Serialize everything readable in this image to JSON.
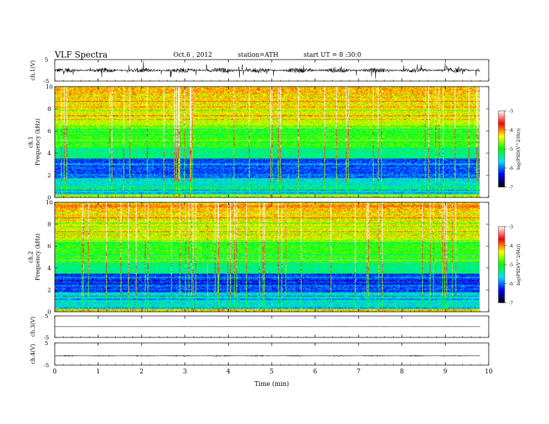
{
  "header": {
    "title": "VLF Spectra",
    "date": "Oct.6 , 2012",
    "station": "station=ATH",
    "start": "start UT = 8 :30:0"
  },
  "colors": {
    "colormap": [
      "#000000",
      "#0000ff",
      "#00e0ff",
      "#00ff00",
      "#ffff00",
      "#ff0000",
      "#ffffff"
    ]
  },
  "chart_data": [
    {
      "type": "line",
      "ylabel": "ch.1(V)",
      "ylim": [
        -5,
        5
      ],
      "yticks": [
        5,
        -5
      ],
      "xlim": [
        0,
        10
      ],
      "trace": {
        "baseline": 0,
        "noise_amplitude": 1.2,
        "spikes": true
      }
    },
    {
      "type": "heatmap",
      "ylabel": "ch.1 Frequency (kHz)",
      "ylim": [
        0,
        10
      ],
      "yticks": [
        0,
        2,
        4,
        6,
        8,
        10
      ],
      "xlim": [
        0,
        9.8
      ],
      "colorbar": {
        "label": "log(PSD(V^2/Hz))",
        "ticks": [
          -3,
          -4,
          -5,
          -6,
          -7
        ],
        "range": [
          -7,
          -3
        ]
      }
    },
    {
      "type": "heatmap",
      "ylabel": "ch.2 Frequency (kHz)",
      "ylim": [
        0,
        10
      ],
      "yticks": [
        0,
        2,
        4,
        6,
        8,
        10
      ],
      "xlim": [
        0,
        9.8
      ],
      "colorbar": {
        "label": "log(PSD(V^2/Hz))",
        "ticks": [
          -3,
          -4,
          -5,
          -6,
          -7
        ],
        "range": [
          -7,
          -3
        ]
      }
    },
    {
      "type": "line",
      "ylabel": "ch.3(V)",
      "ylim": [
        -5,
        5
      ],
      "yticks": [
        5,
        -5
      ],
      "xlim": [
        0,
        10
      ],
      "trace": {
        "baseline": 0,
        "noise_amplitude": 0.05,
        "spikes": false
      }
    },
    {
      "type": "line",
      "ylabel": "ch.4(V)",
      "ylim": [
        -5,
        5
      ],
      "yticks": [
        5,
        -5
      ],
      "xlim": [
        0,
        10
      ],
      "trace": {
        "baseline": -0.8,
        "noise_amplitude": 0.25,
        "spikes": false
      }
    }
  ],
  "x_axis": {
    "label": "Time (min)",
    "ticks": [
      0,
      1,
      2,
      3,
      4,
      5,
      6,
      7,
      8,
      9,
      10
    ]
  }
}
